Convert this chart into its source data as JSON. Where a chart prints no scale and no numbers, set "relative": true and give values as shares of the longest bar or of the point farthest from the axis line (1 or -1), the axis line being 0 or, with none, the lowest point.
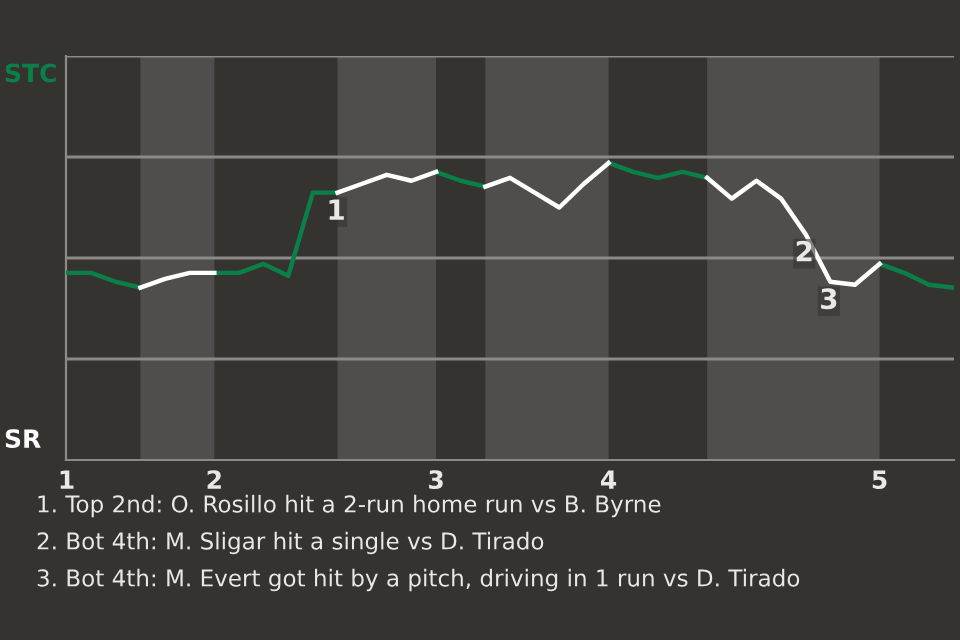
{
  "chart_data": {
    "type": "line",
    "relative": true,
    "categories": [
      "1",
      null,
      null,
      null,
      null,
      null,
      "2",
      null,
      null,
      null,
      null,
      null,
      null,
      null,
      null,
      "3",
      null,
      null,
      null,
      null,
      null,
      null,
      "4",
      null,
      null,
      null,
      null,
      null,
      null,
      null,
      null,
      null,
      null,
      "5",
      null,
      null,
      null
    ],
    "ylim": [
      0,
      1.36
    ],
    "grid": "y",
    "marker": "none",
    "line_style": "solid",
    "legend": "left",
    "series": [
      {
        "name": "STC",
        "color": "#0a8048",
        "values": [
          0.63,
          0.63,
          0.6,
          0.58,
          null,
          null,
          0.63,
          0.63,
          0.66,
          0.62,
          0.9,
          0.9,
          null,
          null,
          null,
          0.97,
          0.94,
          0.92,
          null,
          null,
          null,
          null,
          1,
          0.97,
          0.95,
          0.97,
          0.95,
          null,
          null,
          null,
          null,
          null,
          null,
          0.66,
          0.63,
          0.59,
          0.58
        ]
      },
      {
        "name": "SR",
        "color": "#ffffff",
        "values": [
          null,
          null,
          null,
          0.58,
          0.61,
          0.63,
          0.63,
          null,
          null,
          null,
          null,
          0.9,
          0.93,
          0.96,
          0.94,
          0.97,
          null,
          0.92,
          0.95,
          0.9,
          0.85,
          0.93,
          1,
          null,
          null,
          null,
          0.95,
          0.88,
          0.94,
          0.88,
          0.76,
          0.6,
          0.59,
          0.66,
          null,
          null,
          null
        ]
      }
    ],
    "annotations": [
      {
        "text": "1",
        "y": 0.9
      },
      {
        "text": "2",
        "y": 0.76
      },
      {
        "text": "3",
        "y": 0.6
      },
      "1. Top 2nd: O. Rosillo hit a 2-run home run vs B. Byrne",
      "2. Bot 4th: M. Sligar hit a single vs D. Tirado",
      "3. Bot 4th: M. Evert got hit by a pitch, driving in 1 run vs D. Tirado"
    ]
  }
}
